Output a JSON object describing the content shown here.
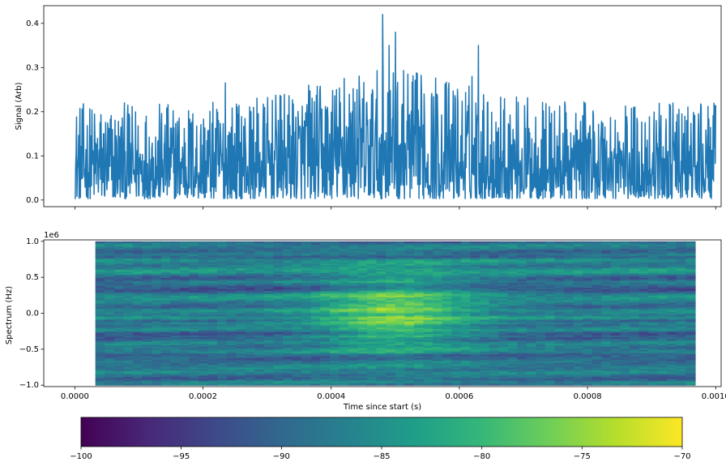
{
  "chart_data": [
    {
      "type": "line",
      "ylabel": "Signal (Arb)",
      "xlabel": "",
      "xlim": [
        -4.85e-05,
        0.0010085
      ],
      "ylim": [
        -0.015,
        0.44
      ],
      "yticks": [
        "0.0",
        "0.1",
        "0.2",
        "0.3",
        "0.4"
      ],
      "ytick_values": [
        0.0,
        0.1,
        0.2,
        0.3,
        0.4
      ],
      "xtick_values": [
        0.0,
        0.0002,
        0.0004,
        0.0006,
        0.0008,
        0.001
      ],
      "show_xtick_labels": false,
      "grid": false,
      "series": [
        {
          "color": "#1f77b4",
          "x_start": 0.0,
          "x_end": 0.001,
          "n_points": 1500,
          "baseline": 0.085,
          "noise_range": [
            0.003,
            0.22
          ],
          "notable_peaks": [
            {
              "x": 0.00048,
              "y": 0.42
            },
            {
              "x": 0.0005,
              "y": 0.38
            },
            {
              "x": 0.00049,
              "y": 0.35
            },
            {
              "x": 0.00063,
              "y": 0.35
            },
            {
              "x": 0.00062,
              "y": 0.28
            },
            {
              "x": 0.000235,
              "y": 0.265
            },
            {
              "x": 0.00042,
              "y": 0.275
            },
            {
              "x": 0.00052,
              "y": 0.285
            },
            {
              "x": 0.000365,
              "y": 0.26
            },
            {
              "x": 0.00044,
              "y": 0.25
            },
            {
              "x": 0.000545,
              "y": 0.24
            }
          ]
        }
      ]
    },
    {
      "type": "heatmap",
      "ylabel": "Spectrum (Hz)",
      "xlabel": "Time since start (s)",
      "y_offset_label": "1e6",
      "xlim": [
        -4.85e-05,
        0.0010085
      ],
      "ylim": [
        -1.02,
        1.02
      ],
      "data_extent_x": [
        3.2e-05,
        0.000968
      ],
      "data_extent_y": [
        -1.0,
        1.0
      ],
      "xticks": [
        "0.0000",
        "0.0002",
        "0.0004",
        "0.0006",
        "0.0008",
        "0.0010"
      ],
      "xtick_values": [
        0.0,
        0.0002,
        0.0004,
        0.0006,
        0.0008,
        0.001
      ],
      "yticks": [
        "1.0",
        "0.5",
        "0.0",
        "−0.5",
        "−1.0"
      ],
      "ytick_values": [
        1.0,
        0.5,
        0.0,
        -0.5,
        -1.0
      ],
      "colormap": "viridis",
      "value_range": [
        -100,
        -70
      ],
      "hotspot": {
        "x": 0.0005,
        "y": 0.0,
        "value": -76
      },
      "grid": false
    }
  ],
  "colorbar": {
    "ticks": [
      "−100",
      "−95",
      "−90",
      "−85",
      "−80",
      "−75",
      "−70"
    ],
    "tick_values": [
      -100,
      -95,
      -90,
      -85,
      -80,
      -75,
      -70
    ],
    "colormap": "viridis",
    "stops": [
      "#440154",
      "#482878",
      "#3e4989",
      "#31688e",
      "#26828e",
      "#1f9e89",
      "#35b779",
      "#6ece58",
      "#b5de2b",
      "#fde725"
    ]
  }
}
